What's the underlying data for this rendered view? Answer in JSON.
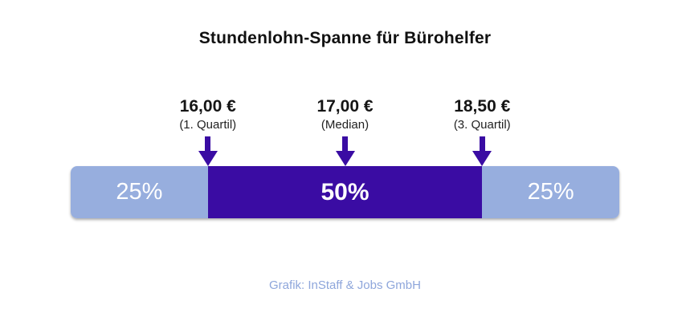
{
  "title": "Stundenlohn-Spanne für Bürohelfer",
  "markers": [
    {
      "value": "16,00 €",
      "label": "(1. Quartil)",
      "position_pct": 25
    },
    {
      "value": "17,00 €",
      "label": "(Median)",
      "position_pct": 50
    },
    {
      "value": "18,50 €",
      "label": "(3. Quartil)",
      "position_pct": 75
    }
  ],
  "segments": [
    {
      "label": "25%",
      "share_pct": 25,
      "color": "#97AEDE"
    },
    {
      "label": "50%",
      "share_pct": 50,
      "color": "#3A0CA3"
    },
    {
      "label": "25%",
      "share_pct": 25,
      "color": "#97AEDE"
    }
  ],
  "caption": "Grafik: InStaff & Jobs GmbH",
  "colors": {
    "accent_purple": "#3A0CA3",
    "light_blue": "#97AEDE",
    "caption_text": "#8EA6DB",
    "title_text": "#111111",
    "bar_label_text": "#FFFFFF"
  },
  "chart_data": {
    "type": "bar",
    "title": "Stundenlohn-Spanne für Bürohelfer",
    "unit": "EUR pro Stunde",
    "segments": [
      {
        "label": "25%",
        "share_pct": 25
      },
      {
        "label": "50%",
        "share_pct": 50
      },
      {
        "label": "25%",
        "share_pct": 25
      }
    ],
    "markers": [
      {
        "display": "16,00 €",
        "label": "(1. Quartil)",
        "value_eur": 16.0,
        "position_pct": 25
      },
      {
        "display": "17,00 €",
        "label": "(Median)",
        "value_eur": 17.0,
        "position_pct": 50
      },
      {
        "display": "18,50 €",
        "label": "(3. Quartil)",
        "value_eur": 18.5,
        "position_pct": 75
      }
    ],
    "legend_position": "none",
    "grid": false,
    "source": "Grafik: InStaff & Jobs GmbH"
  }
}
